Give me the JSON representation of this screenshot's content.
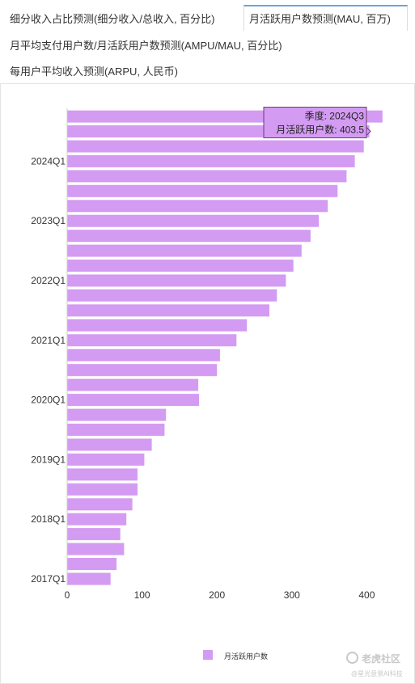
{
  "tabs": [
    {
      "label": "细分收入占比预测(细分收入/总收入, 百分比)",
      "active": false
    },
    {
      "label": "月活跃用户数预测(MAU, 百万)",
      "active": true
    },
    {
      "label": "月平均支付用户数/月活跃用户数预测(AMPU/MAU, 百分比)",
      "active": false
    },
    {
      "label": "每用户平均收入预测(ARPU, 人民币)",
      "active": false
    }
  ],
  "tooltip": {
    "line1": "季度: 2024Q3",
    "line2": "月活跃用户数: 403.5"
  },
  "legend": {
    "label": "月活跃用户数",
    "color": "#d49bf3"
  },
  "watermark": {
    "main": "老虎社区",
    "sub": "@星光意景AI科技"
  },
  "colors": {
    "bar": "#d49bf3",
    "tooltip_bg": "#d49bf3",
    "tooltip_border": "#6b3a7a",
    "axis": "#cccccc"
  },
  "chart_data": {
    "type": "bar",
    "orientation": "horizontal",
    "categories": [
      "2017Q1",
      "2017Q2",
      "2017Q3",
      "2017Q4",
      "2018Q1",
      "2018Q2",
      "2018Q3",
      "2018Q4",
      "2019Q1",
      "2019Q2",
      "2019Q3",
      "2019Q4",
      "2020Q1",
      "2020Q2",
      "2020Q3",
      "2020Q4",
      "2021Q1",
      "2021Q2",
      "2021Q3",
      "2021Q4",
      "2022Q1",
      "2022Q2",
      "2022Q3",
      "2022Q4",
      "2023Q1",
      "2023Q2",
      "2023Q3",
      "2023Q4",
      "2024Q1",
      "2024Q2",
      "2024Q3",
      "2024Q4"
    ],
    "category_tick_labels": [
      "2017Q1",
      "2018Q1",
      "2019Q1",
      "2020Q1",
      "2021Q1",
      "2022Q1",
      "2023Q1",
      "2024Q1"
    ],
    "series": [
      {
        "name": "月活跃用户数",
        "values": [
          58,
          66,
          76,
          71,
          79,
          87,
          94,
          94,
          103,
          113,
          130,
          132,
          176,
          175,
          200,
          204,
          226,
          240,
          270,
          280,
          292,
          302,
          313,
          325,
          336,
          348,
          361,
          373,
          384,
          396,
          403.5,
          421
        ]
      }
    ],
    "x_ticks": [
      0,
      100,
      200,
      300,
      400
    ],
    "xlim": [
      0,
      440
    ],
    "grid": false,
    "legend_position": "bottom-center",
    "tooltip_category": "2024Q3"
  }
}
